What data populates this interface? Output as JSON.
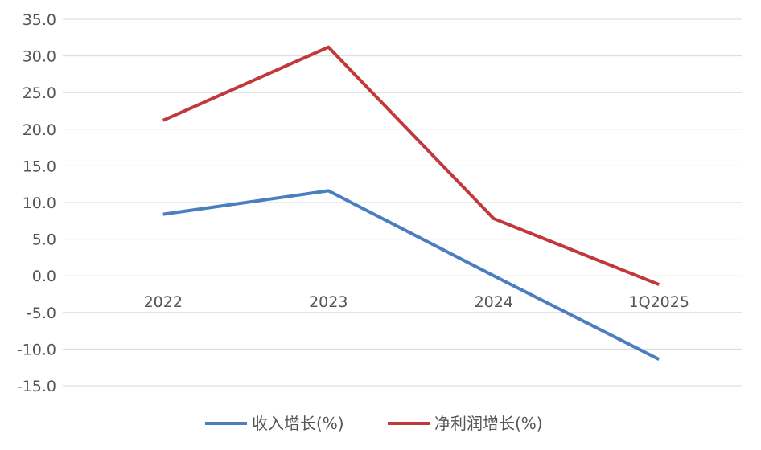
{
  "chart_data": {
    "type": "line",
    "title": "",
    "xlabel": "",
    "ylabel": "",
    "categories": [
      "2022",
      "2023",
      "2024",
      "1Q2025"
    ],
    "ylim": [
      -15,
      35
    ],
    "yticks": [
      "35.0",
      "30.0",
      "25.0",
      "20.0",
      "15.0",
      "10.0",
      "5.0",
      "0.0",
      "-5.0",
      "-10.0",
      "-15.0"
    ],
    "grid": true,
    "legend_position": "bottom",
    "series": [
      {
        "name": "收入增长(%)",
        "color": "#4a7ebf",
        "values": [
          8.4,
          11.6,
          0.0,
          -11.4
        ]
      },
      {
        "name": "净利润增长(%)",
        "color": "#c0393b",
        "values": [
          21.2,
          31.2,
          7.8,
          -1.2
        ]
      }
    ]
  }
}
